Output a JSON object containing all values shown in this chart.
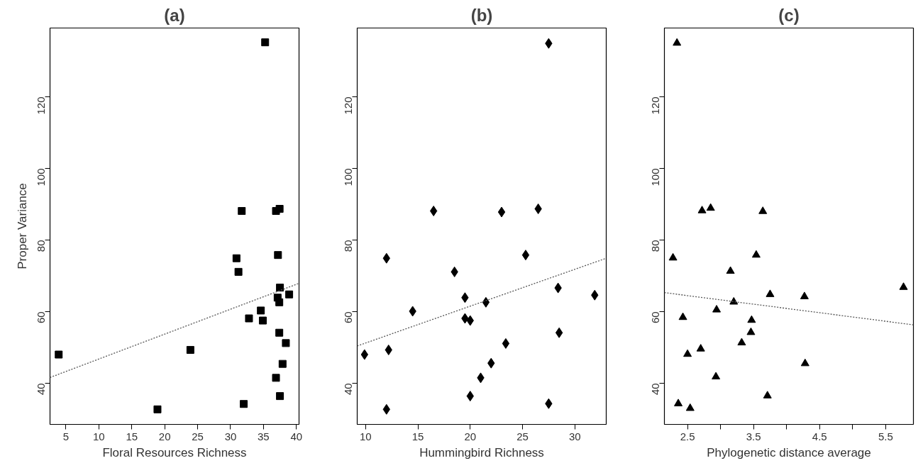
{
  "chart_data": [
    {
      "type": "scatter",
      "title": "(a)",
      "xlabel": "Floral Resources Richness",
      "ylabel": "Proper Variance",
      "xlim": [
        2.58,
        40.4
      ],
      "ylim": [
        28.5,
        139.2
      ],
      "xticks": [
        5,
        10,
        15,
        20,
        25,
        30,
        35,
        40
      ],
      "yticks": [
        40,
        60,
        80,
        100,
        120
      ],
      "grid": false,
      "series": [
        {
          "type": "scatter",
          "marker": "square",
          "color": "#000000",
          "x": [
            35.25,
            31.7,
            36.9,
            37.45,
            30.9,
            31.2,
            37.2,
            37.5,
            37.15,
            37.4,
            38.9,
            34.6,
            32.8,
            34.9,
            37.4,
            38.4,
            37.9,
            36.9,
            37.5,
            32.0,
            18.9,
            23.9,
            3.9
          ],
          "values": [
            135.2,
            88.1,
            88.1,
            88.7,
            74.9,
            71.1,
            75.8,
            66.7,
            63.9,
            62.6,
            64.8,
            60.3,
            58.1,
            57.5,
            54.1,
            51.2,
            45.4,
            41.5,
            36.4,
            34.2,
            32.7,
            49.3,
            48.0
          ]
        },
        {
          "type": "line",
          "line_style": "dotted",
          "color": "#555555",
          "x": [
            2.58,
            40.4
          ],
          "values": [
            41.6,
            67.9
          ]
        }
      ]
    },
    {
      "type": "scatter",
      "title": "(b)",
      "xlabel": "Hummingbird Richness",
      "xlim": [
        9.2,
        33.0
      ],
      "ylim": [
        28.5,
        139.2
      ],
      "xticks": [
        10,
        15,
        20,
        25,
        30
      ],
      "yticks": [
        40,
        60,
        80,
        100,
        120
      ],
      "grid": false,
      "series": [
        {
          "type": "scatter",
          "marker": "diamond",
          "color": "#000000",
          "x": [
            27.5,
            16.5,
            23.0,
            26.5,
            12.0,
            25.3,
            18.5,
            28.4,
            19.5,
            21.5,
            31.9,
            14.5,
            19.5,
            20.0,
            28.5,
            23.4,
            12.2,
            9.9,
            22.0,
            21.0,
            20.0,
            27.5,
            12.0
          ],
          "values": [
            134.9,
            88.1,
            87.8,
            88.7,
            74.9,
            75.8,
            71.1,
            66.6,
            63.9,
            62.6,
            64.6,
            60.1,
            58.1,
            57.5,
            54.1,
            51.1,
            49.3,
            48.0,
            45.6,
            41.5,
            36.4,
            34.3,
            32.7
          ]
        },
        {
          "type": "line",
          "line_style": "dotted",
          "color": "#555555",
          "x": [
            9.2,
            33.0
          ],
          "values": [
            50.4,
            74.9
          ]
        }
      ]
    },
    {
      "type": "scatter",
      "title": "(c)",
      "xlabel": "Phylogenetic distance average",
      "xlim": [
        2.15,
        5.92
      ],
      "ylim": [
        28.5,
        139.2
      ],
      "xticks": [
        2.5,
        {
          "value": 3,
          "label": null
        },
        3.5,
        {
          "value": 4,
          "label": null
        },
        4.5,
        {
          "value": 5,
          "label": null
        },
        5.5
      ],
      "yticks": [
        40,
        60,
        80,
        100,
        120
      ],
      "grid": false,
      "series": [
        {
          "type": "scatter",
          "marker": "triangle",
          "color": "#000000",
          "x": [
            2.34,
            2.72,
            2.85,
            3.64,
            2.28,
            3.54,
            3.15,
            5.77,
            3.75,
            4.27,
            3.2,
            2.94,
            2.43,
            3.47,
            3.46,
            3.32,
            2.7,
            2.5,
            4.28,
            2.93,
            3.71,
            2.36,
            2.54
          ],
          "values": [
            135.0,
            88.2,
            88.9,
            88.0,
            75.0,
            75.8,
            71.3,
            66.8,
            64.8,
            64.2,
            62.7,
            60.5,
            58.4,
            57.6,
            54.2,
            51.3,
            49.6,
            48.1,
            45.5,
            41.8,
            36.5,
            34.3,
            33.0
          ]
        },
        {
          "type": "line",
          "line_style": "dotted",
          "color": "#555555",
          "x": [
            2.15,
            5.92
          ],
          "values": [
            65.3,
            56.3
          ]
        }
      ]
    }
  ]
}
